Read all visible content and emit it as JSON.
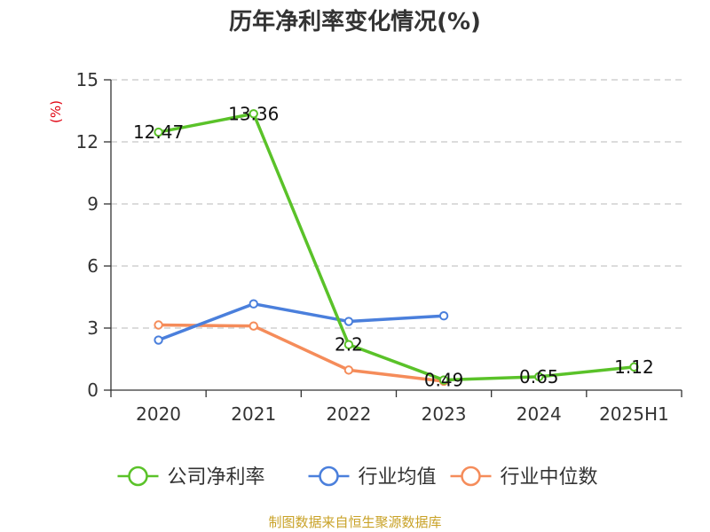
{
  "chart_data": {
    "type": "line",
    "title": "历年净利率变化情况(%)",
    "ylabel": "(%)",
    "categories": [
      "2020",
      "2021",
      "2022",
      "2023",
      "2024",
      "2025H1"
    ],
    "ylim": [
      0,
      15
    ],
    "yticks": [
      0,
      3,
      6,
      9,
      12,
      15
    ],
    "grid": true,
    "legend_position": "bottom",
    "series": [
      {
        "name": "公司净利率",
        "color": "#5ac229",
        "values": [
          12.47,
          13.36,
          2.2,
          0.49,
          0.65,
          1.12
        ],
        "labels": [
          "12.47",
          "13.36",
          "2.2",
          "0.49",
          "0.65",
          "1.12"
        ]
      },
      {
        "name": "行业均值",
        "color": "#4a7fdc",
        "values": [
          2.42,
          4.17,
          3.32,
          3.59,
          null,
          null
        ]
      },
      {
        "name": "行业中位数",
        "color": "#f58c5a",
        "values": [
          3.15,
          3.1,
          0.97,
          0.43,
          null,
          null
        ]
      }
    ]
  },
  "source": "制图数据来自恒生聚源数据库"
}
